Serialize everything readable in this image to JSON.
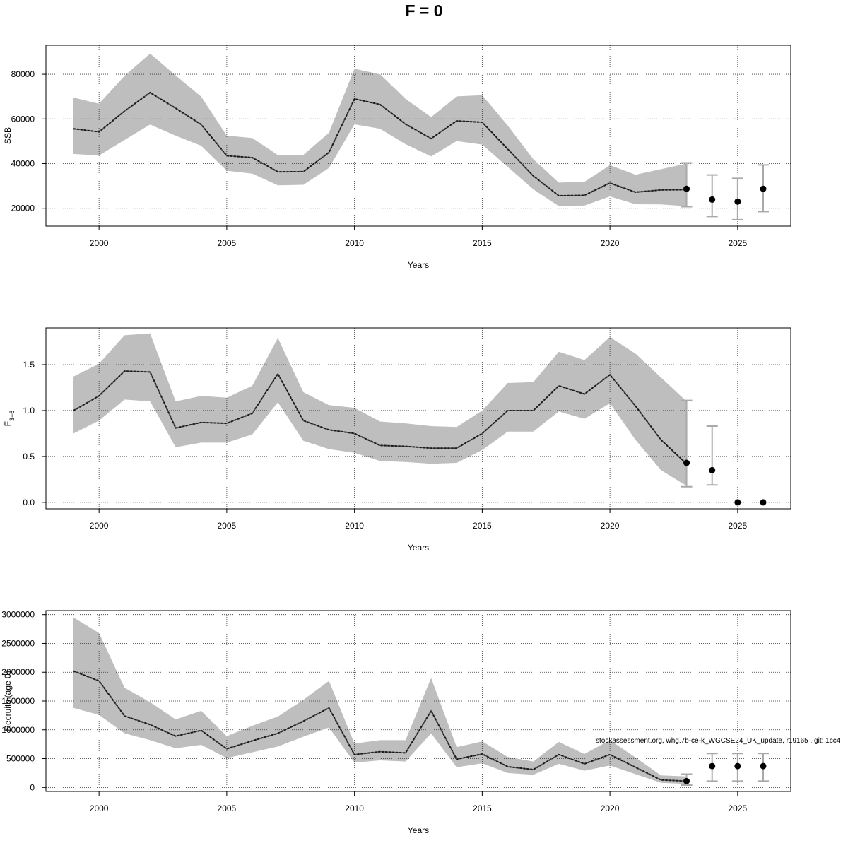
{
  "title": "F = 0",
  "footnote": "stockassessment.org, whg.7b-ce-k_WGCSE24_UK_update, r19165 , git: 1cc4",
  "colors": {
    "band": "#bebebe",
    "line": "#1a1a1a",
    "errorbar": "#a9a9a9",
    "point": "#000000",
    "grid": "#333333"
  },
  "chart_data": [
    {
      "type": "line",
      "xlabel": "Years",
      "ylabel": "SSB",
      "xlim": [
        1999,
        2026
      ],
      "ylim": [
        12000,
        93000
      ],
      "xticks": [
        2000,
        2005,
        2010,
        2015,
        2020,
        2025
      ],
      "yticks": [
        20000,
        40000,
        60000,
        80000
      ],
      "ytick_labels": [
        "20000",
        "40000",
        "60000",
        "80000"
      ],
      "grid": true,
      "series": [
        {
          "x": [
            1999,
            2000,
            2001,
            2002,
            2003,
            2004,
            2005,
            2006,
            2007,
            2008,
            2009,
            2010,
            2011,
            2012,
            2013,
            2014,
            2015,
            2016,
            2017,
            2018,
            2019,
            2020,
            2021,
            2022,
            2023
          ],
          "values": [
            55600,
            54200,
            63500,
            71800,
            64800,
            57500,
            43500,
            42700,
            36300,
            36400,
            45000,
            69000,
            66500,
            57700,
            51200,
            59100,
            58500,
            46500,
            34500,
            25600,
            25800,
            31300,
            27200,
            28200,
            28300
          ],
          "lower": [
            44300,
            43600,
            50600,
            57500,
            52500,
            48000,
            36800,
            35500,
            30300,
            30500,
            38000,
            57600,
            55600,
            48700,
            43200,
            50100,
            48500,
            38500,
            28500,
            21000,
            21200,
            25300,
            21800,
            21700,
            20900
          ],
          "upper": [
            69600,
            66800,
            79300,
            89300,
            79500,
            70000,
            52500,
            51500,
            43800,
            43900,
            53800,
            82500,
            80000,
            69000,
            60800,
            70100,
            70600,
            57000,
            42000,
            31500,
            31800,
            39300,
            35000,
            37500,
            40000
          ]
        }
      ],
      "forecast": {
        "x": [
          2023,
          2024,
          2025,
          2026
        ],
        "values": [
          28700,
          23900,
          23000,
          28700
        ],
        "lower": [
          20700,
          16300,
          14900,
          18500
        ],
        "upper": [
          40300,
          34900,
          33400,
          39400
        ]
      }
    },
    {
      "type": "line",
      "xlabel": "Years",
      "ylabel": "F̄",
      "ylabel_sub": "3−6",
      "xlim": [
        1999,
        2026
      ],
      "ylim": [
        -0.07,
        1.9
      ],
      "xticks": [
        2000,
        2005,
        2010,
        2015,
        2020,
        2025
      ],
      "yticks": [
        0.0,
        0.5,
        1.0,
        1.5
      ],
      "ytick_labels": [
        "0.0",
        "0.5",
        "1.0",
        "1.5"
      ],
      "grid": true,
      "series": [
        {
          "x": [
            1999,
            2000,
            2001,
            2002,
            2003,
            2004,
            2005,
            2006,
            2007,
            2008,
            2009,
            2010,
            2011,
            2012,
            2013,
            2014,
            2015,
            2016,
            2017,
            2018,
            2019,
            2020,
            2021,
            2022,
            2023
          ],
          "values": [
            1.0,
            1.16,
            1.43,
            1.42,
            0.81,
            0.87,
            0.86,
            0.97,
            1.4,
            0.89,
            0.79,
            0.75,
            0.62,
            0.61,
            0.59,
            0.59,
            0.75,
            1.0,
            1.0,
            1.27,
            1.18,
            1.39,
            1.05,
            0.68,
            0.42
          ],
          "lower": [
            0.75,
            0.89,
            1.12,
            1.1,
            0.6,
            0.65,
            0.65,
            0.74,
            1.09,
            0.67,
            0.58,
            0.54,
            0.45,
            0.44,
            0.42,
            0.43,
            0.57,
            0.77,
            0.77,
            0.99,
            0.91,
            1.08,
            0.68,
            0.35,
            0.18
          ],
          "upper": [
            1.37,
            1.51,
            1.82,
            1.84,
            1.1,
            1.16,
            1.14,
            1.27,
            1.79,
            1.2,
            1.06,
            1.03,
            0.88,
            0.86,
            0.83,
            0.82,
            1.0,
            1.3,
            1.31,
            1.64,
            1.55,
            1.8,
            1.62,
            1.36,
            1.1
          ]
        }
      ],
      "forecast": {
        "x": [
          2023,
          2024,
          2025,
          2026
        ],
        "values": [
          0.43,
          0.35,
          0.0,
          0.0
        ],
        "lower": [
          0.17,
          0.19,
          null,
          null
        ],
        "upper": [
          1.11,
          0.83,
          null,
          null
        ]
      }
    },
    {
      "type": "line",
      "xlabel": "Years",
      "ylabel": "Recruits (age 0)",
      "xlim": [
        1999,
        2026
      ],
      "ylim": [
        -70000,
        3070000
      ],
      "xticks": [
        2000,
        2005,
        2010,
        2015,
        2020,
        2025
      ],
      "yticks": [
        0,
        500000,
        1000000,
        1500000,
        2000000,
        2500000,
        3000000
      ],
      "ytick_labels": [
        "0",
        "500000",
        "1000000",
        "1500000",
        "2000000",
        "2500000",
        "3000000"
      ],
      "grid": true,
      "series": [
        {
          "x": [
            1999,
            2000,
            2001,
            2002,
            2003,
            2004,
            2005,
            2006,
            2007,
            2008,
            2009,
            2010,
            2011,
            2012,
            2013,
            2014,
            2015,
            2016,
            2017,
            2018,
            2019,
            2020,
            2021,
            2022,
            2023
          ],
          "values": [
            2020000,
            1850000,
            1240000,
            1090000,
            890000,
            990000,
            670000,
            810000,
            940000,
            1150000,
            1380000,
            570000,
            620000,
            600000,
            1330000,
            490000,
            580000,
            360000,
            310000,
            570000,
            410000,
            570000,
            350000,
            130000,
            110000
          ],
          "lower": [
            1380000,
            1260000,
            940000,
            820000,
            680000,
            740000,
            510000,
            610000,
            710000,
            880000,
            1040000,
            430000,
            470000,
            450000,
            940000,
            350000,
            420000,
            250000,
            220000,
            410000,
            290000,
            380000,
            230000,
            80000,
            60000
          ],
          "upper": [
            2950000,
            2680000,
            1730000,
            1480000,
            1180000,
            1330000,
            890000,
            1070000,
            1230000,
            1520000,
            1850000,
            760000,
            820000,
            820000,
            1900000,
            700000,
            800000,
            530000,
            450000,
            790000,
            580000,
            820000,
            520000,
            210000,
            190000
          ]
        }
      ],
      "forecast": {
        "x": [
          2023,
          2024,
          2025,
          2026
        ],
        "values": [
          110000,
          370000,
          370000,
          370000
        ],
        "lower": [
          40000,
          110000,
          110000,
          110000
        ],
        "upper": [
          230000,
          590000,
          590000,
          590000
        ]
      }
    }
  ]
}
